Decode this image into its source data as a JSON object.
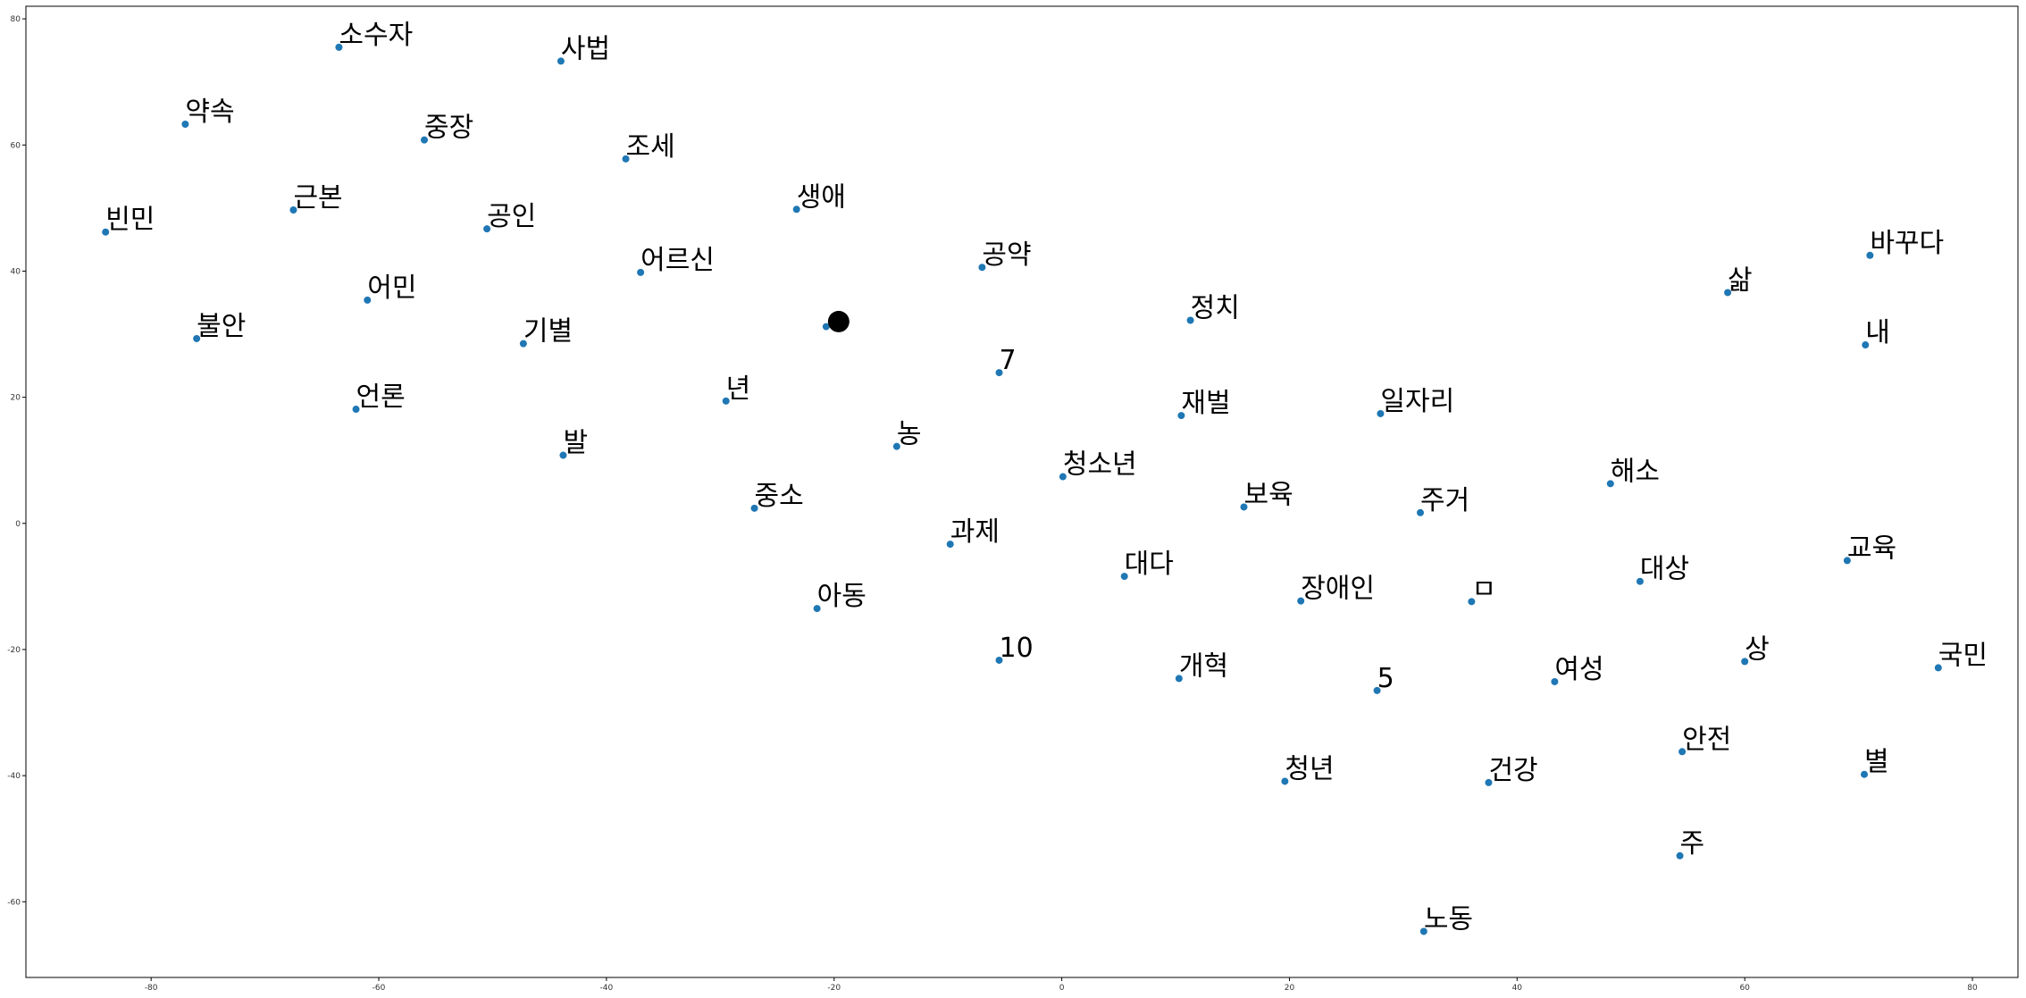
{
  "chart_data": {
    "type": "scatter",
    "title": "",
    "xlabel": "",
    "ylabel": "",
    "xlim": [
      -91,
      84
    ],
    "ylim": [
      -72,
      82
    ],
    "grid": false,
    "point_color": "#1f77b4",
    "label_color": "#000000",
    "x_ticks": [
      -80,
      -60,
      -40,
      -20,
      0,
      20,
      40,
      60,
      80
    ],
    "y_ticks": [
      -60,
      -40,
      -20,
      0,
      20,
      40,
      60,
      80
    ],
    "highlight": {
      "x": -19.6,
      "y": 32.0,
      "color": "#000000"
    },
    "points": [
      {
        "label": "소수자",
        "x": -63.5,
        "y": 75.5
      },
      {
        "label": "사법",
        "x": -44.0,
        "y": 73.3
      },
      {
        "label": "약속",
        "x": -77.0,
        "y": 63.3
      },
      {
        "label": "중장",
        "x": -56.0,
        "y": 60.8
      },
      {
        "label": "조세",
        "x": -38.3,
        "y": 57.8
      },
      {
        "label": "근본",
        "x": -67.5,
        "y": 49.7
      },
      {
        "label": "생애",
        "x": -23.3,
        "y": 49.8
      },
      {
        "label": "빈민",
        "x": -84.0,
        "y": 46.2
      },
      {
        "label": "공인",
        "x": -50.5,
        "y": 46.7
      },
      {
        "label": "어르신",
        "x": -37.0,
        "y": 39.8
      },
      {
        "label": "공약",
        "x": -7.0,
        "y": 40.6
      },
      {
        "label": "바꾸다",
        "x": 71.0,
        "y": 42.5
      },
      {
        "label": "삶",
        "x": 58.5,
        "y": 36.6
      },
      {
        "label": "어민",
        "x": -61.0,
        "y": 35.4
      },
      {
        "label": "정치",
        "x": 11.3,
        "y": 32.2
      },
      {
        "label": "불안",
        "x": -76.0,
        "y": 29.3
      },
      {
        "label": "기별",
        "x": -47.3,
        "y": 28.5
      },
      {
        "label": "",
        "x": -20.7,
        "y": 31.2
      },
      {
        "label": "내",
        "x": 70.6,
        "y": 28.3
      },
      {
        "label": "7",
        "x": -5.5,
        "y": 23.9
      },
      {
        "label": "년",
        "x": -29.5,
        "y": 19.4
      },
      {
        "label": "언론",
        "x": -62.0,
        "y": 18.1
      },
      {
        "label": "재벌",
        "x": 10.5,
        "y": 17.1
      },
      {
        "label": "일자리",
        "x": 28.0,
        "y": 17.4
      },
      {
        "label": "발",
        "x": -43.8,
        "y": 10.8
      },
      {
        "label": "농",
        "x": -14.5,
        "y": 12.2
      },
      {
        "label": "청소년",
        "x": 0.1,
        "y": 7.4
      },
      {
        "label": "해소",
        "x": 48.2,
        "y": 6.3
      },
      {
        "label": "중소",
        "x": -27.0,
        "y": 2.4
      },
      {
        "label": "보육",
        "x": 16.0,
        "y": 2.6
      },
      {
        "label": "주거",
        "x": 31.5,
        "y": 1.7
      },
      {
        "label": "과제",
        "x": -9.8,
        "y": -3.3
      },
      {
        "label": "교육",
        "x": 69.0,
        "y": -5.9
      },
      {
        "label": "대다",
        "x": 5.5,
        "y": -8.4
      },
      {
        "label": "대상",
        "x": 50.8,
        "y": -9.2
      },
      {
        "label": "장애인",
        "x": 21.0,
        "y": -12.3
      },
      {
        "label": "ㅁ",
        "x": 36.0,
        "y": -12.4
      },
      {
        "label": "아동",
        "x": -21.5,
        "y": -13.5
      },
      {
        "label": "10",
        "x": -5.5,
        "y": -21.7
      },
      {
        "label": "상",
        "x": 60.0,
        "y": -21.9
      },
      {
        "label": "국민",
        "x": 77.0,
        "y": -22.9
      },
      {
        "label": "개혁",
        "x": 10.3,
        "y": -24.6
      },
      {
        "label": "여성",
        "x": 43.3,
        "y": -25.1
      },
      {
        "label": "5",
        "x": 27.7,
        "y": -26.5
      },
      {
        "label": "안전",
        "x": 54.5,
        "y": -36.2
      },
      {
        "label": "별",
        "x": 70.5,
        "y": -39.8
      },
      {
        "label": "청년",
        "x": 19.6,
        "y": -40.9
      },
      {
        "label": "건강",
        "x": 37.5,
        "y": -41.1
      },
      {
        "label": "주",
        "x": 54.3,
        "y": -52.7
      },
      {
        "label": "노동",
        "x": 31.8,
        "y": -64.7
      }
    ]
  }
}
